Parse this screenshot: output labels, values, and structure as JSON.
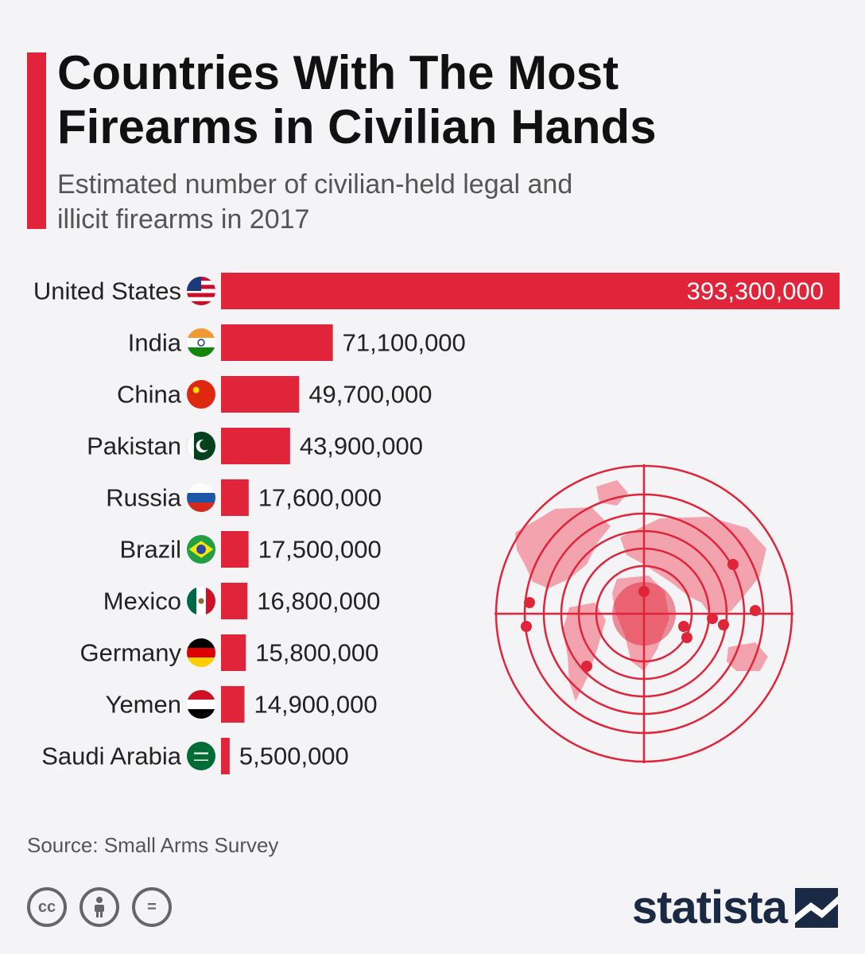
{
  "header": {
    "title": "Countries With The Most Firearms in Civilian Hands",
    "subtitle": "Estimated number of civilian-held legal and illicit firearms in 2017"
  },
  "colors": {
    "accent": "#e0243a",
    "map": "#f2a3ad",
    "brand": "#1a2a44"
  },
  "chart_data": {
    "type": "bar",
    "orientation": "horizontal",
    "categories": [
      "United States",
      "India",
      "China",
      "Pakistan",
      "Russia",
      "Brazil",
      "Mexico",
      "Germany",
      "Yemen",
      "Saudi Arabia"
    ],
    "values": [
      393300000,
      71100000,
      49700000,
      43900000,
      17600000,
      17500000,
      16800000,
      15800000,
      14900000,
      5500000
    ],
    "value_labels": [
      "393,300,000",
      "71,100,000",
      "49,700,000",
      "43,900,000",
      "17,600,000",
      "17,500,000",
      "16,800,000",
      "15,800,000",
      "14,900,000",
      "5,500,000"
    ],
    "flags": [
      "us-flag-icon",
      "india-flag-icon",
      "china-flag-icon",
      "pakistan-flag-icon",
      "russia-flag-icon",
      "brazil-flag-icon",
      "mexico-flag-icon",
      "germany-flag-icon",
      "yemen-flag-icon",
      "saudi-arabia-flag-icon"
    ],
    "bar_color": "#e0243a",
    "xlim": [
      0,
      393300000
    ],
    "grid": false,
    "legend": "none"
  },
  "footer": {
    "source": "Source: Small Arms Survey",
    "license_icons": [
      "cc-icon",
      "person-icon",
      "equals-icon"
    ],
    "license_text": [
      "cc",
      "="
    ],
    "brand": "statista"
  }
}
